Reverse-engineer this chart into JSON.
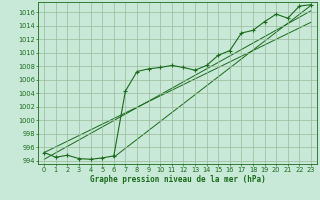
{
  "xlabel": "Graphe pression niveau de la mer (hPa)",
  "background_color": "#c8e8d8",
  "grid_color": "#99bb99",
  "line_color": "#1a6b1a",
  "ylim": [
    993.5,
    1017.5
  ],
  "xlim": [
    -0.5,
    23.5
  ],
  "yticks": [
    994,
    996,
    998,
    1000,
    1002,
    1004,
    1006,
    1008,
    1010,
    1012,
    1014,
    1016
  ],
  "xticks": [
    0,
    1,
    2,
    3,
    4,
    5,
    6,
    7,
    8,
    9,
    10,
    11,
    12,
    13,
    14,
    15,
    16,
    17,
    18,
    19,
    20,
    21,
    22,
    23
  ],
  "pressure_data": [
    995.2,
    994.5,
    994.8,
    994.3,
    994.2,
    994.4,
    994.7,
    1004.3,
    1007.2,
    1007.6,
    1007.8,
    1008.1,
    1007.8,
    1007.4,
    1008.1,
    1009.6,
    1010.3,
    1012.9,
    1013.3,
    1014.6,
    1015.7,
    1015.1,
    1016.9,
    1017.1
  ],
  "trend_lines": [
    {
      "x0": 0,
      "y0": 995.2,
      "x1": 23,
      "y1": 1014.5
    },
    {
      "x0": 0,
      "y0": 994.2,
      "x1": 23,
      "y1": 1016.2
    },
    {
      "x0": 6,
      "y0": 994.5,
      "x1": 23,
      "y1": 1017.0
    }
  ],
  "xlabel_fontsize": 5.5,
  "tick_fontsize": 4.8
}
